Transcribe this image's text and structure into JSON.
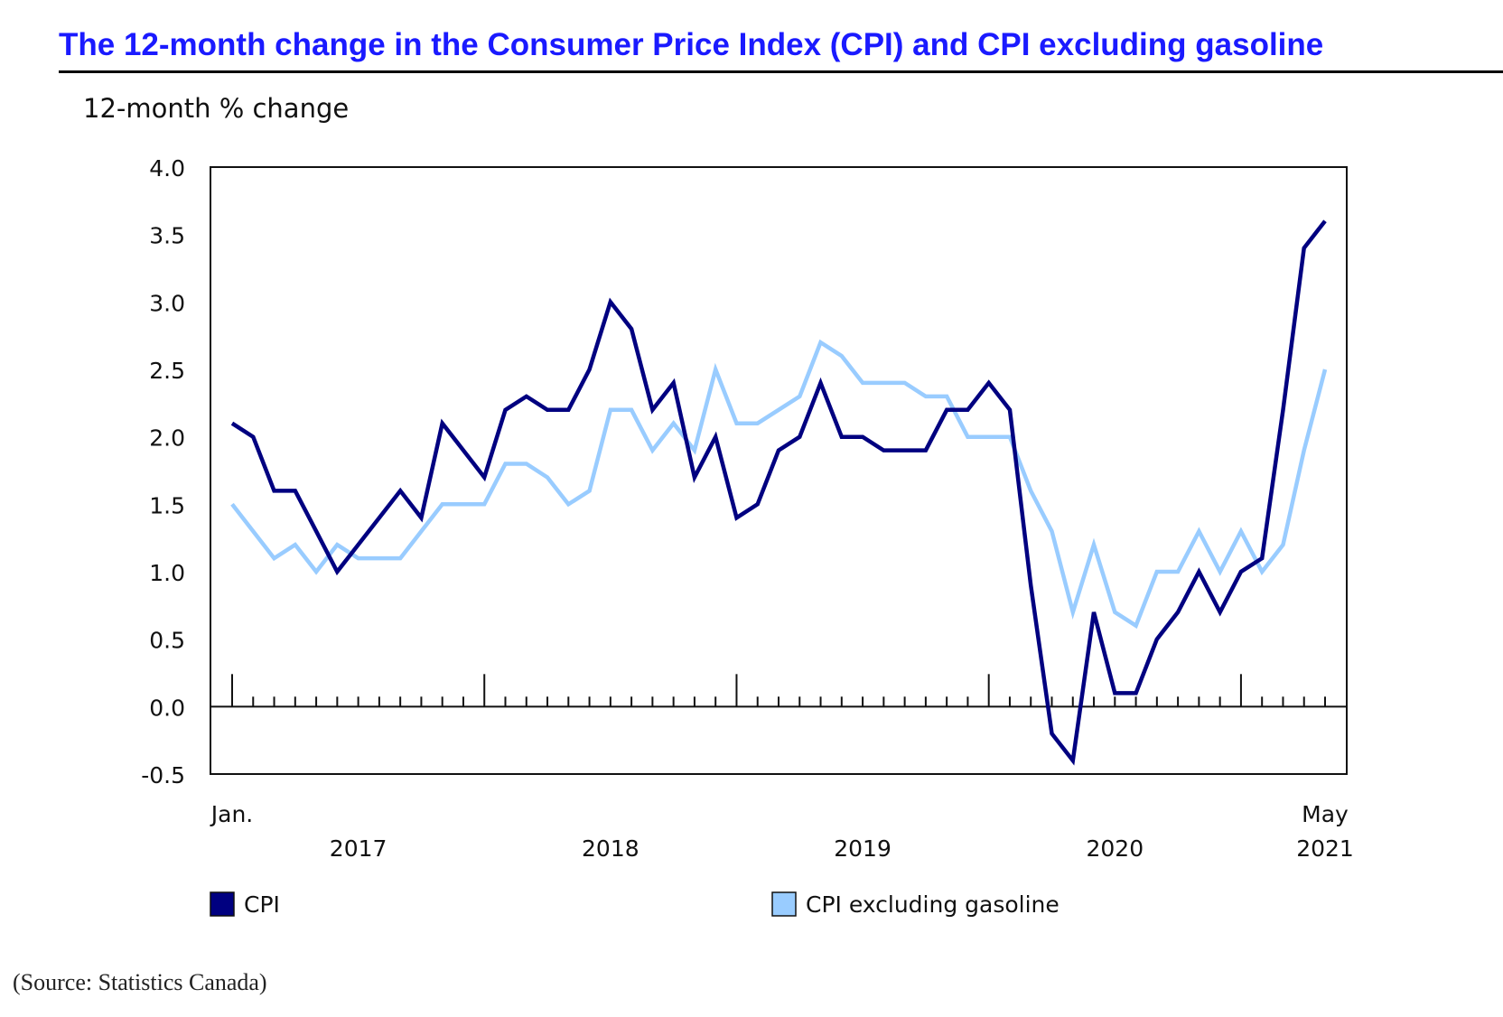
{
  "title": "The 12-month change in the Consumer Price Index (CPI) and CPI excluding gasoline",
  "source": "(Source: Statistics Canada)",
  "colors": {
    "title": "#1a1aff",
    "cpi": "#000080",
    "cpi_ex_gas": "#99ccff"
  },
  "chart_data": {
    "type": "line",
    "title": "The 12-month change in the Consumer Price Index (CPI) and CPI excluding gasoline",
    "ylabel": "12-month % change",
    "xlabel": "",
    "ylim": [
      -0.5,
      4.0
    ],
    "yticks": [
      "4.0",
      "3.5",
      "3.0",
      "2.5",
      "2.0",
      "1.5",
      "1.0",
      "0.5",
      "0.0",
      "-0.5"
    ],
    "ytick_values": [
      4.0,
      3.5,
      3.0,
      2.5,
      2.0,
      1.5,
      1.0,
      0.5,
      0.0,
      -0.5
    ],
    "x_start": "Jan. 2017",
    "x_end": "May 2021",
    "x_first_label": "Jan.",
    "x_last_label": "May",
    "year_labels": [
      "2017",
      "2018",
      "2019",
      "2020",
      "2021"
    ],
    "grid": false,
    "legend_placement": "bottom",
    "series": [
      {
        "name": "CPI",
        "color": "#000080",
        "values": [
          2.1,
          2.0,
          1.6,
          1.6,
          1.3,
          1.0,
          1.2,
          1.4,
          1.6,
          1.4,
          2.1,
          1.9,
          1.7,
          2.2,
          2.3,
          2.2,
          2.2,
          2.5,
          3.0,
          2.8,
          2.2,
          2.4,
          1.7,
          2.0,
          1.4,
          1.5,
          1.9,
          2.0,
          2.4,
          2.0,
          2.0,
          1.9,
          1.9,
          1.9,
          2.2,
          2.2,
          2.4,
          2.2,
          0.9,
          -0.2,
          -0.4,
          0.7,
          0.1,
          0.1,
          0.5,
          0.7,
          1.0,
          0.7,
          1.0,
          1.1,
          2.2,
          3.4,
          3.6
        ]
      },
      {
        "name": "CPI excluding gasoline",
        "color": "#99ccff",
        "values": [
          1.5,
          1.3,
          1.1,
          1.2,
          1.0,
          1.2,
          1.1,
          1.1,
          1.1,
          1.3,
          1.5,
          1.5,
          1.5,
          1.8,
          1.8,
          1.7,
          1.5,
          1.6,
          2.2,
          2.2,
          1.9,
          2.1,
          1.9,
          2.5,
          2.1,
          2.1,
          2.2,
          2.3,
          2.7,
          2.6,
          2.4,
          2.4,
          2.4,
          2.3,
          2.3,
          2.0,
          2.0,
          2.0,
          1.6,
          1.3,
          0.7,
          1.2,
          0.7,
          0.6,
          1.0,
          1.0,
          1.3,
          1.0,
          1.3,
          1.0,
          1.2,
          1.9,
          2.5
        ]
      }
    ]
  }
}
